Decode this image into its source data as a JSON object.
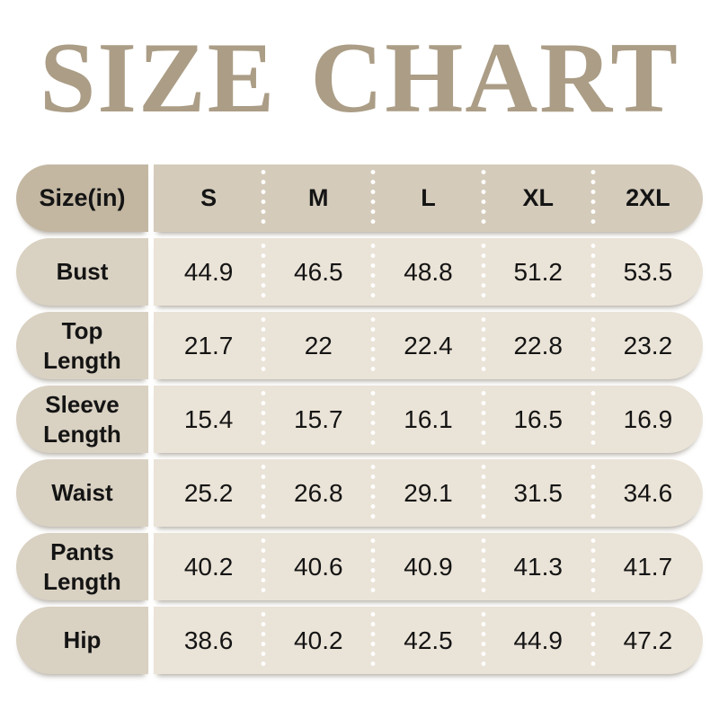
{
  "title": "SIZE CHART",
  "colors": {
    "title_text": "#ab9d86",
    "header_label_bg": "#c3b7a2",
    "header_row_bg": "#d4cbbb",
    "row_label_bg": "#d9d1c2",
    "row_values_bg": "#eae3d7",
    "cell_text": "#141414",
    "separator_dots": "#ffffff",
    "page_bg": "#ffffff"
  },
  "chart_data": {
    "type": "table",
    "title": "SIZE CHART",
    "unit": "in",
    "header": {
      "label": "Size(in)",
      "sizes": [
        "S",
        "M",
        "L",
        "XL",
        "2XL"
      ]
    },
    "rows": [
      {
        "label": "Bust",
        "values": [
          "44.9",
          "46.5",
          "48.8",
          "51.2",
          "53.5"
        ]
      },
      {
        "label": "Top Length",
        "values": [
          "21.7",
          "22",
          "22.4",
          "22.8",
          "23.2"
        ]
      },
      {
        "label": "Sleeve Length",
        "values": [
          "15.4",
          "15.7",
          "16.1",
          "16.5",
          "16.9"
        ]
      },
      {
        "label": "Waist",
        "values": [
          "25.2",
          "26.8",
          "29.1",
          "31.5",
          "34.6"
        ]
      },
      {
        "label": "Pants Length",
        "values": [
          "40.2",
          "40.6",
          "40.9",
          "41.3",
          "41.7"
        ]
      },
      {
        "label": "Hip",
        "values": [
          "38.6",
          "40.2",
          "42.5",
          "44.9",
          "47.2"
        ]
      }
    ]
  }
}
